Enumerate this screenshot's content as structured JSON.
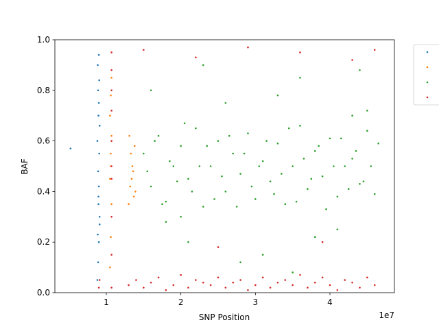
{
  "chart_data": {
    "type": "scatter",
    "x_label": "SNP Position",
    "y_label": "BAF",
    "x_offset_label": "1e7",
    "xlim": [
      3100000,
      48650000
    ],
    "ylim": [
      0,
      1
    ],
    "xticks": [
      {
        "value": 10000000,
        "label": "1"
      },
      {
        "value": 20000000,
        "label": "2"
      },
      {
        "value": 30000000,
        "label": "3"
      },
      {
        "value": 40000000,
        "label": "4"
      }
    ],
    "yticks": [
      {
        "value": 0,
        "label": "0.0"
      },
      {
        "value": 0.2,
        "label": "0.2"
      },
      {
        "value": 0.4,
        "label": "0.4"
      },
      {
        "value": 0.6,
        "label": "0.6"
      },
      {
        "value": 0.8,
        "label": "0.8"
      },
      {
        "value": 1,
        "label": "1.0"
      }
    ],
    "grid": false,
    "legend": "outside upper right",
    "series": [
      {
        "color": "#1f77b4",
        "x": [
          5200000.0,
          8800000.0,
          8900000.0,
          9000000.0,
          8850000.0,
          9100000.0,
          8950000.0,
          9000000.0,
          8900000.0,
          9050000.0,
          8800000.0,
          9100000.0,
          8950000.0,
          9000000.0,
          8900000.0,
          9050000.0,
          8850000.0,
          9000000.0,
          9100000.0,
          8950000.0
        ],
        "y": [
          0.57,
          0.05,
          0.12,
          0.2,
          0.23,
          0.3,
          0.35,
          0.42,
          0.48,
          0.55,
          0.6,
          0.66,
          0.7,
          0.75,
          0.8,
          0.84,
          0.9,
          0.94,
          0.27,
          0.38
        ]
      },
      {
        "color": "#ff7f0e",
        "x": [
          10500000.0,
          10600000.0,
          10700000.0,
          10500000.0,
          10600000.0,
          10700000.0,
          10500000.0,
          10600000.0,
          10700000.0,
          10600000.0,
          13000000.0,
          13200000.0,
          13500000.0,
          13800000.0,
          13100000.0,
          13400000.0,
          13700000.0,
          13300000.0,
          13600000.0,
          13900000.0
        ],
        "y": [
          0.1,
          0.22,
          0.35,
          0.45,
          0.55,
          0.62,
          0.7,
          0.78,
          0.85,
          0.5,
          0.35,
          0.42,
          0.5,
          0.58,
          0.62,
          0.45,
          0.38,
          0.55,
          0.48,
          0.4
        ]
      },
      {
        "color": "#2ca02c",
        "x": [
          15000000.0,
          16000000.0,
          17000000.0,
          18000000.0,
          19000000.0,
          20000000.0,
          21000000.0,
          22000000.0,
          23000000.0,
          24000000.0,
          25000000.0,
          26000000.0,
          27000000.0,
          28000000.0,
          29000000.0,
          30000000.0,
          31000000.0,
          32000000.0,
          33000000.0,
          34000000.0,
          35000000.0,
          36000000.0,
          37000000.0,
          38000000.0,
          39000000.0,
          40000000.0,
          41000000.0,
          42000000.0,
          43000000.0,
          44000000.0,
          45000000.0,
          46000000.0,
          15500000.0,
          16500000.0,
          17500000.0,
          18500000.0,
          19500000.0,
          20500000.0,
          21500000.0,
          22500000.0,
          23500000.0,
          24500000.0,
          25500000.0,
          26500000.0,
          27500000.0,
          28500000.0,
          29500000.0,
          30500000.0,
          31500000.0,
          32500000.0,
          33500000.0,
          34500000.0,
          35500000.0,
          36500000.0,
          37500000.0,
          38500000.0,
          39500000.0,
          40500000.0,
          41500000.0,
          42500000.0,
          43500000.0,
          44500000.0,
          45500000.0,
          46500000.0,
          16000000.0,
          21000000.0,
          26000000.0,
          31000000.0,
          36000000.0,
          41000000.0,
          45000000.0,
          18000000.0,
          23000000.0,
          28000000.0,
          33000000.0,
          38000000.0,
          43000000.0,
          20000000.0,
          35000000.0,
          44000000.0
        ],
        "y": [
          0.55,
          0.42,
          0.62,
          0.36,
          0.5,
          0.58,
          0.45,
          0.65,
          0.34,
          0.5,
          0.6,
          0.4,
          0.55,
          0.47,
          0.63,
          0.37,
          0.52,
          0.44,
          0.59,
          0.35,
          0.5,
          0.66,
          0.41,
          0.56,
          0.46,
          0.61,
          0.38,
          0.5,
          0.53,
          0.43,
          0.64,
          0.39,
          0.48,
          0.6,
          0.35,
          0.52,
          0.44,
          0.67,
          0.4,
          0.5,
          0.58,
          0.37,
          0.46,
          0.62,
          0.34,
          0.55,
          0.42,
          0.5,
          0.6,
          0.39,
          0.47,
          0.65,
          0.36,
          0.53,
          0.45,
          0.58,
          0.33,
          0.5,
          0.61,
          0.41,
          0.56,
          0.44,
          0.5,
          0.59,
          0.8,
          0.2,
          0.75,
          0.15,
          0.85,
          0.25,
          0.72,
          0.28,
          0.9,
          0.12,
          0.78,
          0.22,
          0.7,
          0.3,
          0.08,
          0.88
        ]
      },
      {
        "color": "#d62728",
        "x": [
          10700000.0,
          10700000.0,
          10700000.0,
          10700000.0,
          10700000.0,
          10700000.0,
          10700000.0,
          10700000.0,
          10700000.0,
          10700000.0,
          9000000.0,
          9100000.0,
          13000000.0,
          14000000.0,
          15000000.0,
          16000000.0,
          17000000.0,
          18000000.0,
          19000000.0,
          20000000.0,
          21000000.0,
          22000000.0,
          23000000.0,
          24000000.0,
          25000000.0,
          26000000.0,
          27000000.0,
          28000000.0,
          29000000.0,
          30000000.0,
          31000000.0,
          32000000.0,
          33000000.0,
          34000000.0,
          35000000.0,
          36000000.0,
          37000000.0,
          38000000.0,
          39000000.0,
          40000000.0,
          41000000.0,
          42000000.0,
          43000000.0,
          44000000.0,
          45000000.0,
          46000000.0,
          15000000.0,
          22000000.0,
          29000000.0,
          36000000.0,
          43000000.0,
          46000000.0,
          25000000.0,
          39000000.0
        ],
        "y": [
          0.02,
          0.15,
          0.3,
          0.45,
          0.6,
          0.72,
          0.8,
          0.88,
          0.95,
          0.5,
          0.02,
          0.05,
          0.03,
          0.05,
          0.02,
          0.04,
          0.06,
          0.01,
          0.03,
          0.07,
          0.02,
          0.05,
          0.04,
          0.03,
          0.06,
          0.02,
          0.04,
          0.05,
          0.01,
          0.03,
          0.06,
          0.02,
          0.04,
          0.05,
          0.03,
          0.07,
          0.02,
          0.04,
          0.06,
          0.03,
          0.01,
          0.05,
          0.04,
          0.02,
          0.06,
          0.03,
          0.96,
          0.93,
          0.97,
          0.95,
          0.92,
          0.96,
          0.18,
          0.2
        ]
      }
    ]
  }
}
